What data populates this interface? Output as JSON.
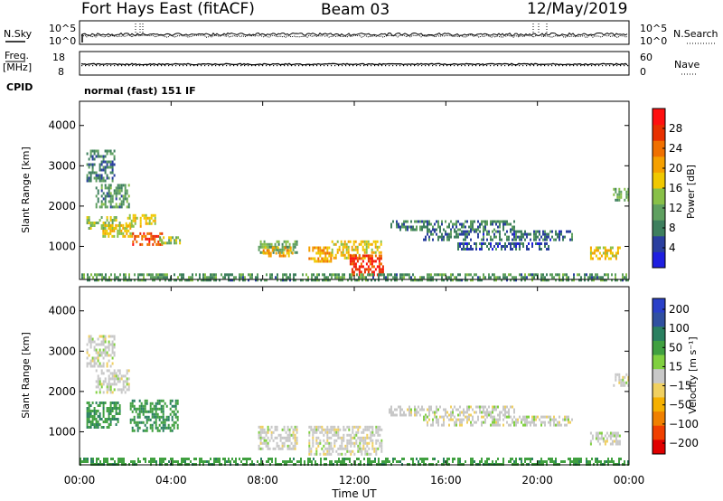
{
  "header": {
    "station": "Fort Hays East (fitACF)",
    "beam": "Beam 03",
    "date": "12/May/2019"
  },
  "noise_panel": {
    "left_label": "N.Sky",
    "left_ticks": [
      "10^5",
      "10^0"
    ],
    "right_ticks": [
      "10^5",
      "10^0"
    ],
    "right_label": "N.Search"
  },
  "freq_panel": {
    "left_label_1": "Freq.",
    "left_label_2": "[MHz]",
    "left_ticks": [
      "18",
      "8"
    ],
    "right_ticks": [
      "60",
      "0"
    ],
    "right_label": "Nave",
    "cpid_label": "CPID",
    "cpid_text": "normal (fast) 151 IF"
  },
  "colors": {
    "power_scale": [
      "#1f1fe0",
      "#2a3f9f",
      "#3e7f5e",
      "#5fa060",
      "#88c048",
      "#f0c800",
      "#f5a000",
      "#f07000",
      "#e83000",
      "#ff1010"
    ],
    "velocity_scale": [
      "#e00000",
      "#f04000",
      "#f08000",
      "#f5b000",
      "#f0d060",
      "#c8c8c8",
      "#80d040",
      "#40a040",
      "#2a8060",
      "#3050a0",
      "#2a40c8"
    ]
  },
  "chart_data": [
    {
      "type": "heatmap",
      "title": "",
      "quantity": "Power",
      "xlabel": "",
      "ylabel": "Slant Range [km]",
      "xlim_hours": [
        0,
        24
      ],
      "ylim_km": [
        180,
        4600
      ],
      "y_ticks": [
        "1000",
        "2000",
        "3000",
        "4000"
      ],
      "colorbar_label": "Power [dB]",
      "colorbar_ticks": [
        "4",
        "8",
        "12",
        "16",
        "20",
        "24",
        "28"
      ],
      "colorbar_range": [
        0,
        32
      ],
      "regions": [
        {
          "t": [
            0.3,
            1.5
          ],
          "r": [
            2600,
            3400
          ],
          "level": 8
        },
        {
          "t": [
            0.7,
            2.2
          ],
          "r": [
            1950,
            2550
          ],
          "level": 10
        },
        {
          "t": [
            0.3,
            1.8
          ],
          "r": [
            1450,
            1750
          ],
          "level": 14
        },
        {
          "t": [
            1.0,
            2.3
          ],
          "r": [
            1250,
            1550
          ],
          "level": 18
        },
        {
          "t": [
            2.0,
            3.3
          ],
          "r": [
            1500,
            1800
          ],
          "level": 17
        },
        {
          "t": [
            2.3,
            3.6
          ],
          "r": [
            1050,
            1350
          ],
          "level": 26
        },
        {
          "t": [
            3.4,
            4.4
          ],
          "r": [
            1050,
            1250
          ],
          "level": 14
        },
        {
          "t": [
            7.8,
            9.5
          ],
          "r": [
            850,
            1150
          ],
          "level": 12
        },
        {
          "t": [
            8.0,
            9.3
          ],
          "r": [
            750,
            1000
          ],
          "level": 20
        },
        {
          "t": [
            10.0,
            11.0
          ],
          "r": [
            600,
            1000
          ],
          "level": 20
        },
        {
          "t": [
            11.0,
            13.2
          ],
          "r": [
            700,
            1150
          ],
          "level": 18
        },
        {
          "t": [
            11.8,
            13.3
          ],
          "r": [
            300,
            800
          ],
          "level": 27
        },
        {
          "t": [
            13.5,
            19.0
          ],
          "r": [
            1400,
            1650
          ],
          "level": 8
        },
        {
          "t": [
            15.0,
            21.5
          ],
          "r": [
            1150,
            1400
          ],
          "level": 7
        },
        {
          "t": [
            16.5,
            20.5
          ],
          "r": [
            900,
            1100
          ],
          "level": 6
        },
        {
          "t": [
            22.3,
            23.6
          ],
          "r": [
            700,
            1000
          ],
          "level": 18
        },
        {
          "t": [
            23.3,
            24.0
          ],
          "r": [
            2150,
            2450
          ],
          "level": 12
        },
        {
          "t": [
            0.0,
            24.0
          ],
          "r": [
            190,
            330
          ],
          "level": 10
        }
      ]
    },
    {
      "type": "heatmap",
      "title": "",
      "quantity": "Velocity",
      "xlabel": "Time UT",
      "ylabel": "Slant Range [km]",
      "xlim_hours": [
        0,
        24
      ],
      "ylim_km": [
        180,
        4600
      ],
      "x_ticks": [
        "00:00",
        "04:00",
        "08:00",
        "12:00",
        "16:00",
        "20:00",
        "00:00"
      ],
      "y_ticks": [
        "1000",
        "2000",
        "3000",
        "4000"
      ],
      "colorbar_label": "Velocity [m s⁻¹]",
      "colorbar_ticks": [
        "200",
        "100",
        "50",
        "15",
        "−15",
        "−50",
        "−100",
        "−200"
      ],
      "regions": [
        {
          "t": [
            0.3,
            1.5
          ],
          "r": [
            2600,
            3400
          ],
          "vel": 0
        },
        {
          "t": [
            0.7,
            2.2
          ],
          "r": [
            1950,
            2550
          ],
          "vel": 0
        },
        {
          "t": [
            0.3,
            1.8
          ],
          "r": [
            1100,
            1750
          ],
          "vel": 70
        },
        {
          "t": [
            2.2,
            4.3
          ],
          "r": [
            1000,
            1800
          ],
          "vel": 70
        },
        {
          "t": [
            7.8,
            9.5
          ],
          "r": [
            600,
            1150
          ],
          "vel": 0
        },
        {
          "t": [
            10.0,
            13.2
          ],
          "r": [
            450,
            1150
          ],
          "vel": 0
        },
        {
          "t": [
            13.5,
            19.0
          ],
          "r": [
            1400,
            1650
          ],
          "vel": 0
        },
        {
          "t": [
            15.0,
            21.5
          ],
          "r": [
            1150,
            1400
          ],
          "vel": 0
        },
        {
          "t": [
            22.3,
            23.6
          ],
          "r": [
            700,
            1000
          ],
          "vel": 0
        },
        {
          "t": [
            23.3,
            24.0
          ],
          "r": [
            2150,
            2450
          ],
          "vel": 0
        },
        {
          "t": [
            0.0,
            24.0
          ],
          "r": [
            190,
            360
          ],
          "vel": 60
        }
      ]
    }
  ]
}
